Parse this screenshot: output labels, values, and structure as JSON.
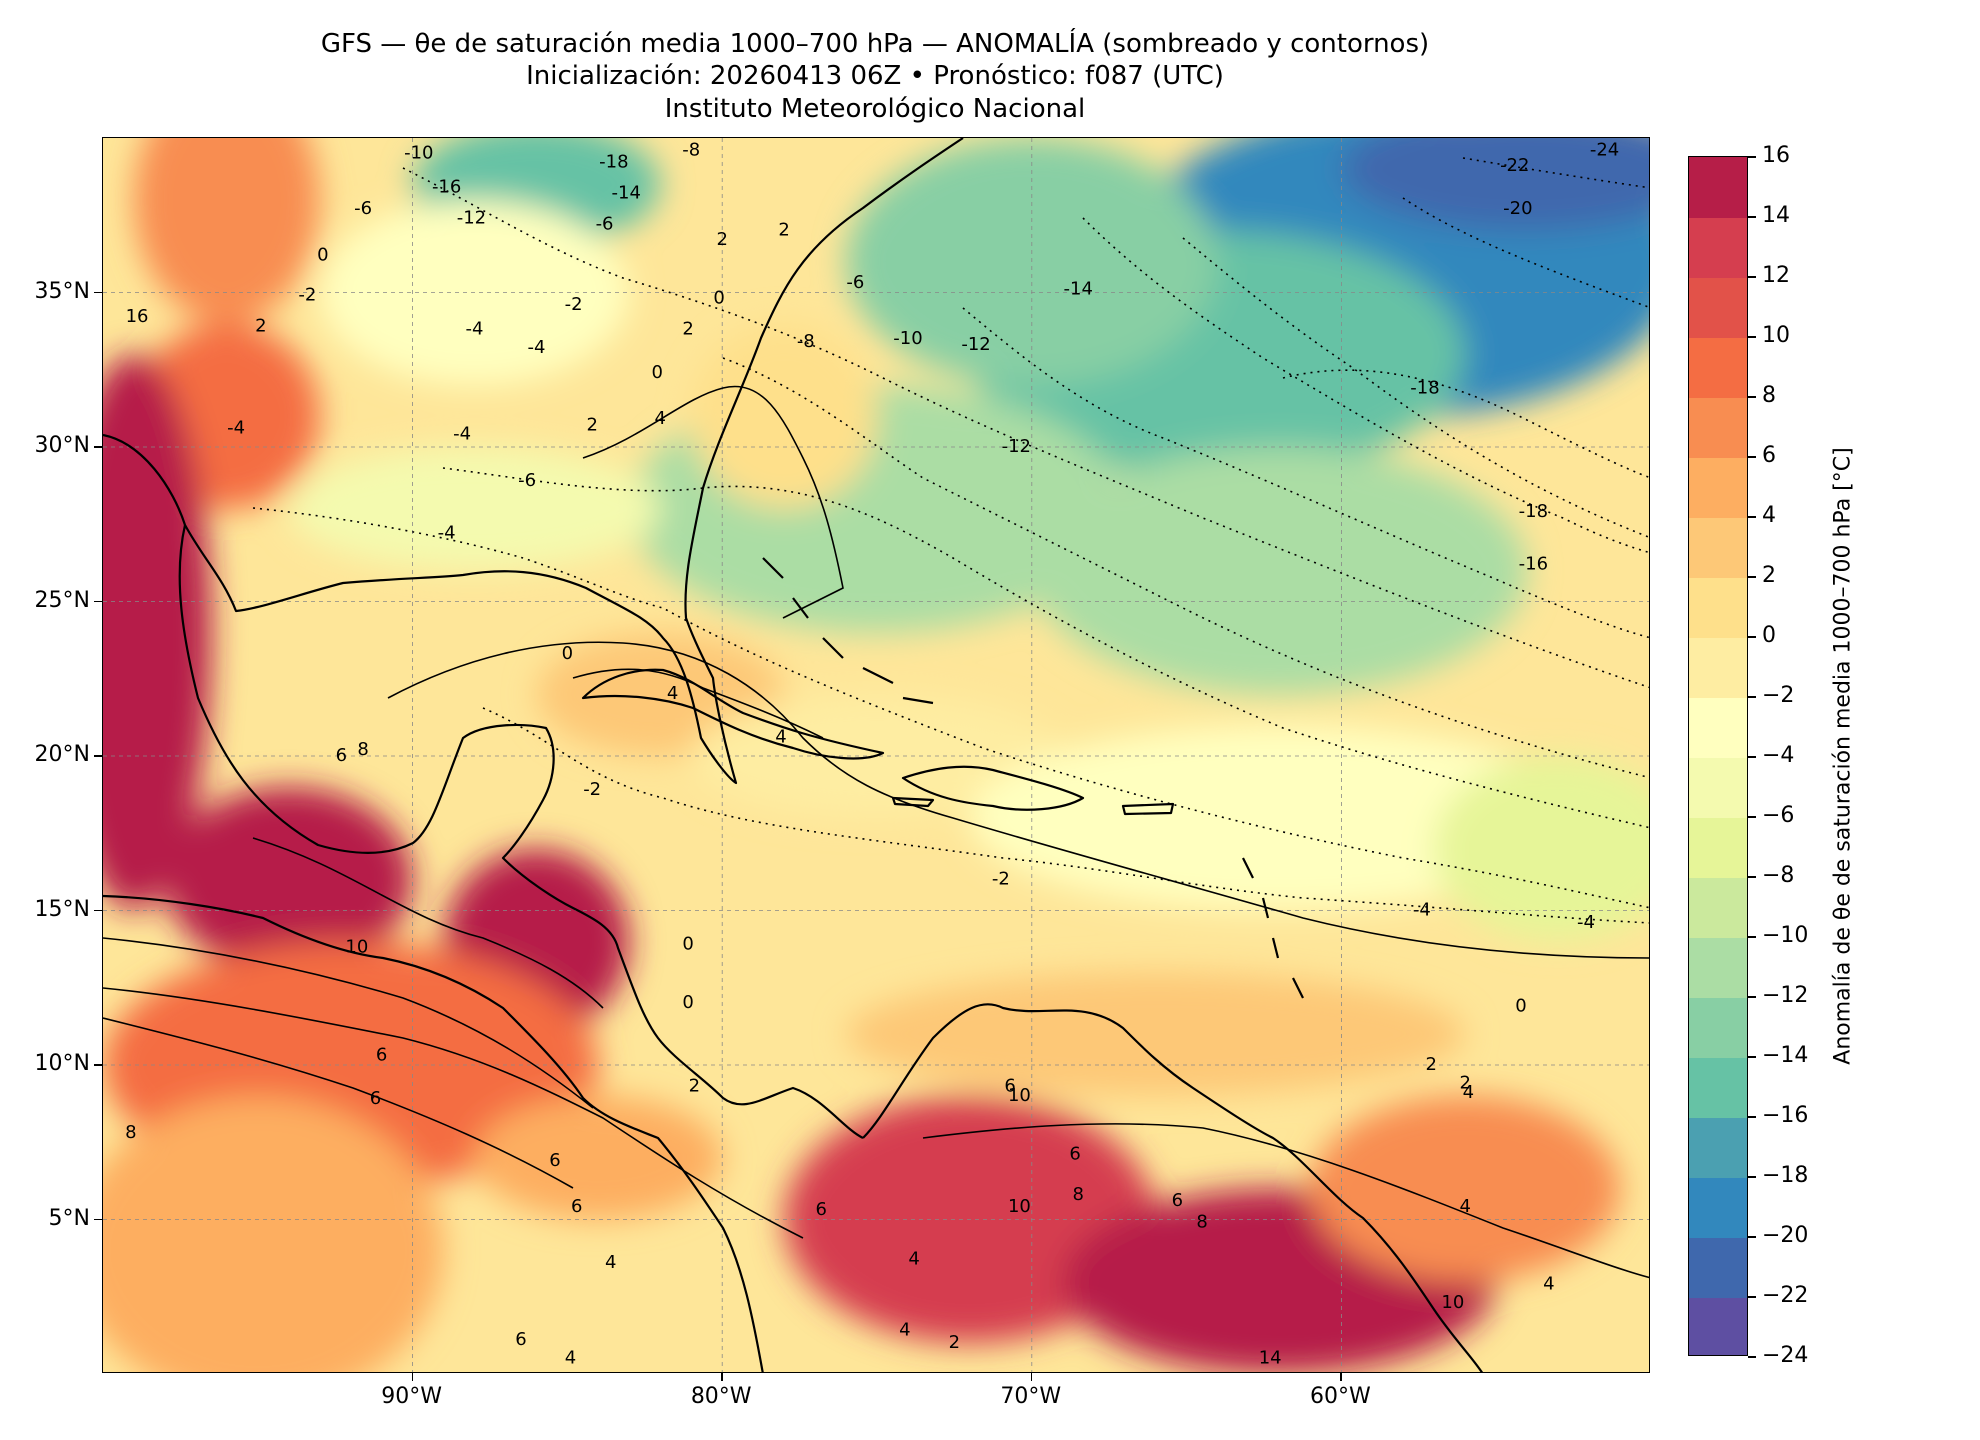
{
  "title": {
    "line1": "GFS — θe de saturación media 1000–700 hPa — ANOMALÍA (sombreado y contornos)",
    "line2": "Inicialización: 20260413 06Z   •   Pronóstico: f087 (UTC)",
    "line3": "Instituto Meteorológico Nacional"
  },
  "map": {
    "lon_range": [
      -100,
      -50
    ],
    "lat_range": [
      0,
      40
    ],
    "lat_ticks": [
      {
        "value": 35,
        "label": "35°N"
      },
      {
        "value": 30,
        "label": "30°N"
      },
      {
        "value": 25,
        "label": "25°N"
      },
      {
        "value": 20,
        "label": "20°N"
      },
      {
        "value": 15,
        "label": "15°N"
      },
      {
        "value": 10,
        "label": "10°N"
      },
      {
        "value": 5,
        "label": "5°N"
      }
    ],
    "lon_ticks": [
      {
        "value": -90,
        "label": "90°W"
      },
      {
        "value": -80,
        "label": "80°W"
      },
      {
        "value": -70,
        "label": "70°W"
      },
      {
        "value": -60,
        "label": "60°W"
      }
    ],
    "gridlines": true,
    "contour_labels": [
      {
        "text": "-18",
        "lon": -83.5,
        "lat": 39.2
      },
      {
        "text": "-16",
        "lon": -88.9,
        "lat": 38.4
      },
      {
        "text": "-14",
        "lon": -83.1,
        "lat": 38.2
      },
      {
        "text": "-12",
        "lon": -88.1,
        "lat": 37.4
      },
      {
        "text": "-10",
        "lon": -89.8,
        "lat": 39.5
      },
      {
        "text": "-8",
        "lon": -81.0,
        "lat": 39.6
      },
      {
        "text": "-6",
        "lon": -91.6,
        "lat": 37.7
      },
      {
        "text": "-6",
        "lon": -83.8,
        "lat": 37.2
      },
      {
        "text": "0",
        "lon": -92.9,
        "lat": 36.2
      },
      {
        "text": "-2",
        "lon": -93.4,
        "lat": 34.9
      },
      {
        "text": "2",
        "lon": -94.9,
        "lat": 33.9
      },
      {
        "text": "2",
        "lon": -80.0,
        "lat": 36.7
      },
      {
        "text": "2",
        "lon": -78.0,
        "lat": 37.0
      },
      {
        "text": "-4",
        "lon": -88.0,
        "lat": 33.8
      },
      {
        "text": "-4",
        "lon": -86.0,
        "lat": 33.2
      },
      {
        "text": "-2",
        "lon": -84.8,
        "lat": 34.6
      },
      {
        "text": "0",
        "lon": -80.1,
        "lat": 34.8
      },
      {
        "text": "2",
        "lon": -81.1,
        "lat": 33.8
      },
      {
        "text": "0",
        "lon": -82.1,
        "lat": 32.4
      },
      {
        "text": "2",
        "lon": -84.2,
        "lat": 30.7
      },
      {
        "text": "4",
        "lon": -82.0,
        "lat": 30.9
      },
      {
        "text": "-4",
        "lon": -88.4,
        "lat": 30.4
      },
      {
        "text": "-6",
        "lon": -86.3,
        "lat": 28.9
      },
      {
        "text": "-4",
        "lon": -88.9,
        "lat": 27.2
      },
      {
        "text": "-4",
        "lon": -95.7,
        "lat": 30.6
      },
      {
        "text": "-8",
        "lon": -77.3,
        "lat": 33.4
      },
      {
        "text": "-6",
        "lon": -75.7,
        "lat": 35.3
      },
      {
        "text": "-10",
        "lon": -74.0,
        "lat": 33.5
      },
      {
        "text": "-12",
        "lon": -71.8,
        "lat": 33.3
      },
      {
        "text": "-14",
        "lon": -68.5,
        "lat": 35.1
      },
      {
        "text": "-12",
        "lon": -70.5,
        "lat": 30.0
      },
      {
        "text": "-18",
        "lon": -57.3,
        "lat": 31.9
      },
      {
        "text": "-18",
        "lon": -53.8,
        "lat": 27.9
      },
      {
        "text": "-16",
        "lon": -53.8,
        "lat": 26.2
      },
      {
        "text": "-20",
        "lon": -54.3,
        "lat": 37.7
      },
      {
        "text": "-22",
        "lon": -54.4,
        "lat": 39.1
      },
      {
        "text": "-24",
        "lon": -51.5,
        "lat": 39.6
      },
      {
        "text": "16",
        "lon": -98.9,
        "lat": 34.2
      },
      {
        "text": "0",
        "lon": -85.0,
        "lat": 23.3
      },
      {
        "text": "4",
        "lon": -81.6,
        "lat": 22.0
      },
      {
        "text": "4",
        "lon": -78.1,
        "lat": 20.6
      },
      {
        "text": "-2",
        "lon": -84.2,
        "lat": 18.9
      },
      {
        "text": "-2",
        "lon": -71.0,
        "lat": 16.0
      },
      {
        "text": "-4",
        "lon": -52.1,
        "lat": 14.6
      },
      {
        "text": "-4",
        "lon": -57.4,
        "lat": 15.0
      },
      {
        "text": "0",
        "lon": -81.1,
        "lat": 13.9
      },
      {
        "text": "0",
        "lon": -81.1,
        "lat": 12.0
      },
      {
        "text": "0",
        "lon": -54.2,
        "lat": 11.9
      },
      {
        "text": "6",
        "lon": -92.3,
        "lat": 20.0
      },
      {
        "text": "8",
        "lon": -91.6,
        "lat": 20.2
      },
      {
        "text": "10",
        "lon": -91.8,
        "lat": 13.8
      },
      {
        "text": "6",
        "lon": -91.0,
        "lat": 10.3
      },
      {
        "text": "6",
        "lon": -91.2,
        "lat": 8.9
      },
      {
        "text": "8",
        "lon": -99.1,
        "lat": 7.8
      },
      {
        "text": "6",
        "lon": -85.4,
        "lat": 6.9
      },
      {
        "text": "6",
        "lon": -84.7,
        "lat": 5.4
      },
      {
        "text": "4",
        "lon": -83.6,
        "lat": 3.6
      },
      {
        "text": "6",
        "lon": -86.5,
        "lat": 1.1
      },
      {
        "text": "4",
        "lon": -84.9,
        "lat": 0.5
      },
      {
        "text": "2",
        "lon": -80.9,
        "lat": 9.3
      },
      {
        "text": "2",
        "lon": -57.1,
        "lat": 10.0
      },
      {
        "text": "2",
        "lon": -56.0,
        "lat": 9.4
      },
      {
        "text": "4",
        "lon": -55.9,
        "lat": 9.1
      },
      {
        "text": "4",
        "lon": -56.0,
        "lat": 5.4
      },
      {
        "text": "4",
        "lon": -73.8,
        "lat": 3.7
      },
      {
        "text": "4",
        "lon": -74.1,
        "lat": 1.4
      },
      {
        "text": "2",
        "lon": -72.5,
        "lat": 1.0
      },
      {
        "text": "6",
        "lon": -76.8,
        "lat": 5.3
      },
      {
        "text": "6",
        "lon": -70.7,
        "lat": 9.3
      },
      {
        "text": "10",
        "lon": -70.4,
        "lat": 9.0
      },
      {
        "text": "10",
        "lon": -70.4,
        "lat": 5.4
      },
      {
        "text": "8",
        "lon": -68.5,
        "lat": 5.8
      },
      {
        "text": "6",
        "lon": -68.6,
        "lat": 7.1
      },
      {
        "text": "8",
        "lon": -64.5,
        "lat": 4.9
      },
      {
        "text": "6",
        "lon": -65.3,
        "lat": 5.6
      },
      {
        "text": "10",
        "lon": -56.4,
        "lat": 2.3
      },
      {
        "text": "14",
        "lon": -62.3,
        "lat": 0.5
      },
      {
        "text": "4",
        "lon": -53.3,
        "lat": 2.9
      }
    ]
  },
  "colorbar": {
    "label": "Anomalía de θe de saturación media 1000–700 hPa [°C]",
    "levels": [
      -24,
      -22,
      -20,
      -18,
      -16,
      -14,
      -12,
      -10,
      -8,
      -6,
      -4,
      -2,
      0,
      2,
      4,
      6,
      8,
      10,
      12,
      14,
      16
    ],
    "tick_labels": [
      "−24",
      "−22",
      "−20",
      "−18",
      "−16",
      "−14",
      "−12",
      "−10",
      "−8",
      "−6",
      "−4",
      "−2",
      "0",
      "2",
      "4",
      "6",
      "8",
      "10",
      "12",
      "14",
      "16"
    ],
    "colors": [
      "#5E4FA2",
      "#3F68AD",
      "#3288BD",
      "#4BA0B1",
      "#66C2A5",
      "#88CFA4",
      "#ABDDA4",
      "#CBE99D",
      "#E6F598",
      "#F4FAAF",
      "#FFFFBF",
      "#FEEDA2",
      "#FEE08B",
      "#FDC877",
      "#FDAE61",
      "#F88D51",
      "#F46D43",
      "#E25249",
      "#D53E4F",
      "#B61E48",
      "#9E0142"
    ]
  }
}
